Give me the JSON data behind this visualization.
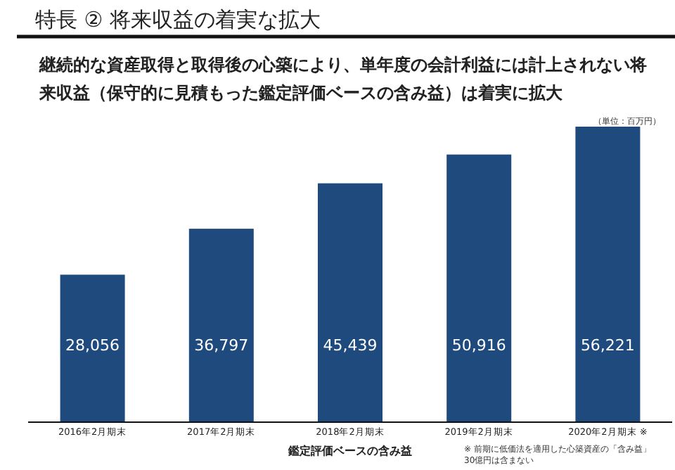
{
  "chart_data": {
    "type": "bar",
    "title": "特長 ② 将来収益の着実な拡大",
    "subtitle": "継続的な資産取得と取得後の心築により、単年度の会計利益には計上されない将来収益（保守的に見積もった鑑定評価ベースの含み益）は着実に拡大",
    "xlabel": "鑑定評価ベースの含み益",
    "categories": [
      "2016年2月期末",
      "2017年2月期末",
      "2018年2月期末",
      "2019年2月期末",
      "2020年2月期末 ※"
    ],
    "values": [
      28056,
      36797,
      45439,
      50916,
      56221
    ],
    "value_labels": [
      "28,056",
      "36,797",
      "45,439",
      "50,916",
      "56,221"
    ],
    "color": "#1f4a7e",
    "annotations": [
      "（単位：百万円）",
      "※ 前期に低価法を適用した心築資産の「含み益」\n30億円は含まない"
    ]
  }
}
